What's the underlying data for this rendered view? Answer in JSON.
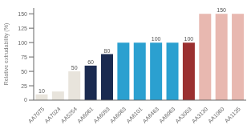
{
  "chart_data": {
    "type": "bar",
    "categories": [
      "AA7075",
      "AA7024",
      "AA5254",
      "AA6061",
      "AA6093",
      "AA6063",
      "AA6101",
      "AA6463",
      "AA6063",
      "AA3003",
      "AA3130",
      "AA1060",
      "AA1135"
    ],
    "values": [
      10,
      15,
      50,
      60,
      80,
      100,
      100,
      100,
      100,
      100,
      150,
      150,
      150
    ],
    "value_labels": [
      10,
      null,
      50,
      60,
      80,
      null,
      null,
      100,
      null,
      100,
      null,
      150,
      null
    ],
    "colors": [
      "#e8e4dc",
      "#e8e4dc",
      "#e8e4dc",
      "#1a2a50",
      "#1a2a50",
      "#2ba0d0",
      "#2ba0d0",
      "#2ba0d0",
      "#2ba0d0",
      "#9b3030",
      "#e8b8b0",
      "#e8b8b0",
      "#e8b8b0"
    ],
    "ylabel": "Relative extrudability (%)",
    "ylim": [
      0,
      160
    ],
    "yticks": [
      0,
      25,
      50,
      75,
      100,
      125,
      150
    ],
    "grid": false
  }
}
